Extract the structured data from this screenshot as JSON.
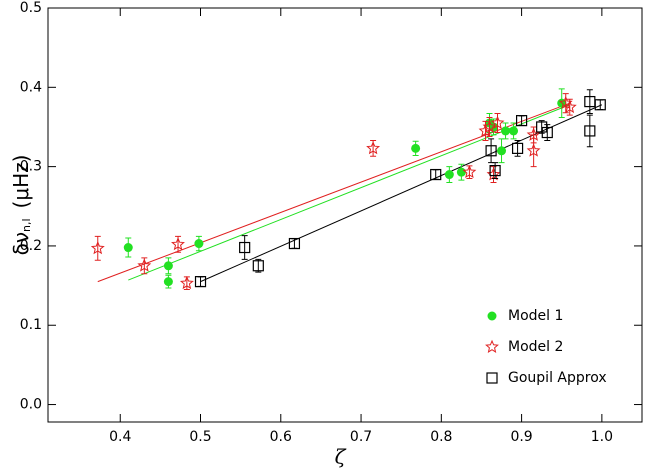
{
  "chart_data": {
    "type": "scatter",
    "xlabel": "ζ",
    "ylabel": {
      "symbol": "δν",
      "subscript": "n,l",
      "unit": "(μHz)"
    },
    "xlim": [
      0.31,
      1.05
    ],
    "ylim": [
      -0.022,
      0.5
    ],
    "xticks": [
      0.4,
      0.5,
      0.6,
      0.7,
      0.8,
      0.9,
      {
        "value": 1.0,
        "label": "1.0"
      }
    ],
    "yticks": [
      {
        "value": 0,
        "label": "0.0"
      },
      0.1,
      0.2,
      0.3,
      0.4,
      0.5
    ],
    "legend": "lower right",
    "series": [
      {
        "name": "Model 1",
        "color": "#22e022",
        "marker": "circle",
        "x": [
          0.41,
          0.46,
          0.46,
          0.498,
          0.768,
          0.81,
          0.825,
          0.86,
          0.865,
          0.875,
          0.88,
          0.89,
          0.95
        ],
        "values": [
          0.198,
          0.175,
          0.155,
          0.203,
          0.323,
          0.29,
          0.293,
          0.355,
          0.35,
          0.32,
          0.345,
          0.345,
          0.38
        ],
        "errors": [
          0.012,
          0.01,
          0.008,
          0.009,
          0.009,
          0.01,
          0.01,
          0.012,
          0.01,
          0.015,
          0.01,
          0.01,
          0.018
        ],
        "fit": {
          "x": [
            0.41,
            0.96
          ],
          "y": [
            0.157,
            0.378
          ]
        }
      },
      {
        "name": "Model 2",
        "color": "#e02020",
        "marker": "star",
        "x": [
          0.372,
          0.43,
          0.472,
          0.483,
          0.715,
          0.835,
          0.855,
          0.86,
          0.865,
          0.87,
          0.915,
          0.915,
          0.955,
          0.96
        ],
        "values": [
          0.197,
          0.175,
          0.202,
          0.153,
          0.323,
          0.293,
          0.345,
          0.35,
          0.29,
          0.355,
          0.32,
          0.34,
          0.38,
          0.375
        ],
        "errors": [
          0.015,
          0.01,
          0.01,
          0.008,
          0.01,
          0.008,
          0.012,
          0.012,
          0.01,
          0.012,
          0.02,
          0.01,
          0.012,
          0.01
        ],
        "fit": {
          "x": [
            0.372,
            0.96
          ],
          "y": [
            0.155,
            0.38
          ]
        }
      },
      {
        "name": "Goupil Approx",
        "color": "#000000",
        "marker": "square",
        "x": [
          0.5,
          0.555,
          0.572,
          0.617,
          0.793,
          0.862,
          0.867,
          0.895,
          0.9,
          0.925,
          0.932,
          0.985,
          0.985,
          0.998
        ],
        "values": [
          0.155,
          0.198,
          0.175,
          0.203,
          0.29,
          0.32,
          0.295,
          0.323,
          0.358,
          0.35,
          0.343,
          0.345,
          0.382,
          0.378
        ],
        "errors": [
          0.006,
          0.015,
          0.008,
          0.006,
          0.006,
          0.015,
          0.01,
          0.01,
          0.006,
          0.008,
          0.01,
          0.02,
          0.015,
          0.006
        ],
        "fit": {
          "x": [
            0.5,
            1.0
          ],
          "y": [
            0.155,
            0.378
          ]
        }
      }
    ]
  }
}
